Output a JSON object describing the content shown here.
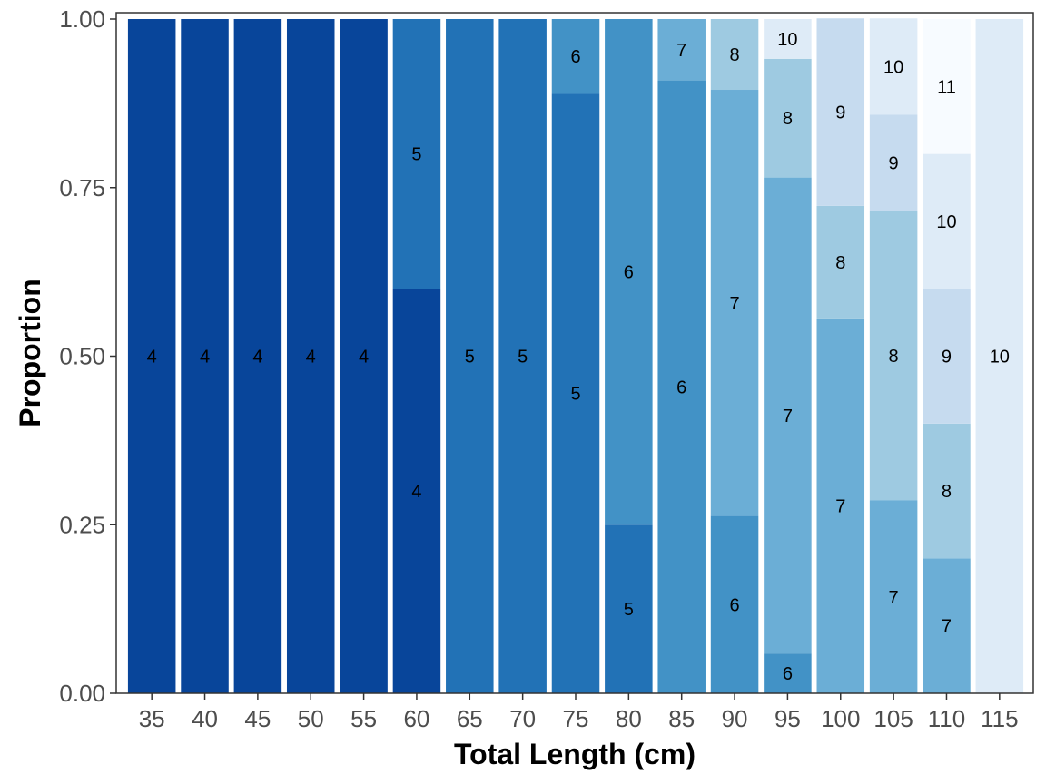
{
  "chart_data": {
    "type": "bar",
    "stacked": true,
    "xlabel": "Total Length (cm)",
    "ylabel": "Proportion",
    "ylim": [
      0,
      1
    ],
    "y_ticks": [
      "0.00",
      "0.25",
      "0.50",
      "0.75",
      "1.00"
    ],
    "grid": false,
    "categories": [
      "35",
      "40",
      "45",
      "50",
      "55",
      "60",
      "65",
      "70",
      "75",
      "80",
      "85",
      "90",
      "95",
      "100",
      "105",
      "110",
      "115"
    ],
    "bars": [
      {
        "category": "35",
        "segments": [
          {
            "age": "4",
            "value": 1.0
          }
        ]
      },
      {
        "category": "40",
        "segments": [
          {
            "age": "4",
            "value": 1.0
          }
        ]
      },
      {
        "category": "45",
        "segments": [
          {
            "age": "4",
            "value": 1.0
          }
        ]
      },
      {
        "category": "50",
        "segments": [
          {
            "age": "4",
            "value": 1.0
          }
        ]
      },
      {
        "category": "55",
        "segments": [
          {
            "age": "4",
            "value": 1.0
          }
        ]
      },
      {
        "category": "60",
        "segments": [
          {
            "age": "4",
            "value": 0.6
          },
          {
            "age": "5",
            "value": 0.4
          }
        ]
      },
      {
        "category": "65",
        "segments": [
          {
            "age": "5",
            "value": 1.0
          }
        ]
      },
      {
        "category": "70",
        "segments": [
          {
            "age": "5",
            "value": 1.0
          }
        ]
      },
      {
        "category": "75",
        "segments": [
          {
            "age": "5",
            "value": 0.889
          },
          {
            "age": "6",
            "value": 0.111
          }
        ]
      },
      {
        "category": "80",
        "segments": [
          {
            "age": "5",
            "value": 0.25
          },
          {
            "age": "6",
            "value": 0.75
          }
        ]
      },
      {
        "category": "85",
        "segments": [
          {
            "age": "6",
            "value": 0.909
          },
          {
            "age": "7",
            "value": 0.091
          }
        ]
      },
      {
        "category": "90",
        "segments": [
          {
            "age": "6",
            "value": 0.263
          },
          {
            "age": "7",
            "value": 0.632
          },
          {
            "age": "8",
            "value": 0.105
          }
        ]
      },
      {
        "category": "95",
        "segments": [
          {
            "age": "6",
            "value": 0.059
          },
          {
            "age": "7",
            "value": 0.706
          },
          {
            "age": "8",
            "value": 0.176
          },
          {
            "age": "10",
            "value": 0.059
          }
        ]
      },
      {
        "category": "100",
        "segments": [
          {
            "age": "7",
            "value": 0.556
          },
          {
            "age": "8",
            "value": 0.167
          },
          {
            "age": "9",
            "value": 0.278
          }
        ]
      },
      {
        "category": "105",
        "segments": [
          {
            "age": "7",
            "value": 0.286
          },
          {
            "age": "8",
            "value": 0.429
          },
          {
            "age": "9",
            "value": 0.143
          },
          {
            "age": "10",
            "value": 0.143
          }
        ]
      },
      {
        "category": "110",
        "segments": [
          {
            "age": "7",
            "value": 0.2
          },
          {
            "age": "8",
            "value": 0.2
          },
          {
            "age": "9",
            "value": 0.2
          },
          {
            "age": "10",
            "value": 0.2
          },
          {
            "age": "11",
            "value": 0.2
          }
        ]
      },
      {
        "category": "115",
        "segments": [
          {
            "age": "10",
            "value": 1.0
          }
        ]
      }
    ],
    "colors": {
      "4": "#08459A",
      "5": "#2272B6",
      "6": "#4292C6",
      "7": "#6BAED6",
      "8": "#9ECAE1",
      "9": "#C6DBEF",
      "10": "#DEEBF7",
      "11": "#F7FBFF"
    }
  }
}
